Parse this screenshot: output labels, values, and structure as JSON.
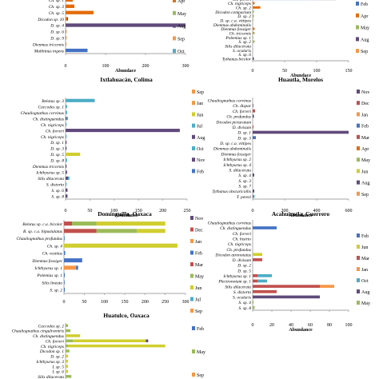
{
  "colors": {
    "Feb": "#4472c4",
    "Mar": "#c0504d",
    "Apr": "#e46c0a",
    "May": "#9bbb59",
    "Jun": "#d0ce2f",
    "Jul": "#4bacc6",
    "Aug": "#604a7b",
    "Sep": "#f79646",
    "Oct": "#4bacc6",
    "Nov": "#604a7b",
    "Dec": "#c0504d",
    "Jan": "#f79646",
    "Mar2": "#4bacc6",
    "Apr2": "#c0504d",
    "May2": "#9bbb59",
    "Aug2": "#604a7b",
    "Sep2": "#f79646",
    "Oct2": "#c0504d",
    "Dec2": "#c0504d"
  },
  "chart_data": [
    {
      "type": "bar",
      "orientation": "horizontal",
      "stacked": true,
      "title": "",
      "xlabel": "Abundace",
      "xlim": [
        0,
        300
      ],
      "xticks": [
        0,
        100,
        200,
        300
      ],
      "categories": [
        "Ch. sp. 1",
        "Ch. sp. 3",
        "Ch. sp. 5",
        "Dicodon sp. 10",
        "D. sp. 4",
        "D. sp. 6",
        "D. sp. 9",
        "Dienmus tricornis",
        "Malthinus ingens"
      ],
      "series": [
        {
          "name": "Feb",
          "values": [
            0,
            0,
            0,
            0,
            0,
            0,
            0,
            0,
            55
          ]
        },
        {
          "name": "Apr",
          "values": [
            18,
            22,
            70,
            4,
            0,
            2,
            2,
            1,
            0
          ]
        },
        {
          "name": "Aug",
          "values": [
            0,
            0,
            0,
            2,
            320,
            0,
            0,
            0,
            0
          ]
        },
        {
          "name": "Sep",
          "values": [
            0,
            0,
            0,
            0,
            0,
            0,
            0,
            0,
            0
          ]
        },
        {
          "name": "Oct",
          "values": [
            0,
            0,
            0,
            0,
            0,
            0,
            0,
            0,
            0
          ]
        }
      ],
      "legend": [
        "Apr",
        "May",
        "Aug",
        "Sep",
        "Oct"
      ]
    },
    {
      "type": "bar",
      "orientation": "horizontal",
      "stacked": true,
      "title": "",
      "xlabel": "Abundace",
      "xlim": [
        0,
        150
      ],
      "xticks": [
        0,
        50,
        100,
        150
      ],
      "categories": [
        "Ch. forreri",
        "Ch. nigriceps",
        "Ch. sp. 2",
        "Dicodon compactum",
        "D. sp. 2",
        "D. sp. c.a. vittipes",
        "Dienmus abdominalis",
        "Dienmus fossiger",
        "Ch. tricornis",
        "Polemius sp. 1",
        "S. sp. 2",
        "Silis dilacerata",
        "S. ocularis",
        "S. sp. 6",
        "Tythanus bicolor"
      ],
      "series": [
        {
          "name": "Feb",
          "values": [
            100,
            0,
            0,
            0,
            0,
            0,
            0,
            0,
            0,
            0,
            0,
            0,
            0,
            0,
            0
          ]
        },
        {
          "name": "Apr",
          "values": [
            0,
            3,
            12,
            0,
            0,
            0,
            0,
            3,
            1,
            0,
            0,
            0,
            0,
            0,
            0
          ]
        },
        {
          "name": "May",
          "values": [
            0,
            0,
            0,
            2,
            2,
            1,
            0,
            0,
            2,
            1,
            3,
            0,
            0,
            0,
            0
          ]
        },
        {
          "name": "Aug",
          "values": [
            30,
            0,
            0,
            0,
            0,
            0,
            0,
            0,
            0,
            0,
            0,
            0,
            0,
            0,
            2
          ]
        },
        {
          "name": "Sep",
          "values": [
            0,
            0,
            0,
            0,
            0,
            0,
            0,
            0,
            0,
            0,
            0,
            0,
            0,
            0,
            0
          ]
        },
        {
          "name": "Oct",
          "values": [
            0,
            0,
            0,
            0,
            0,
            0,
            0,
            0,
            0,
            0,
            0,
            0,
            0,
            0,
            0
          ]
        }
      ],
      "legend": [
        "Feb",
        "Apr",
        "May",
        "Aug",
        "Sep"
      ]
    },
    {
      "type": "bar",
      "orientation": "horizontal",
      "stacked": true,
      "title": "Ixtlahuacán, Colima",
      "xlabel": "Abundance",
      "xlim": [
        0,
        250
      ],
      "xticks": [
        0,
        50,
        100,
        150,
        200,
        250
      ],
      "categories": [
        "Belotus sp. 3",
        "Caccodes sp. 1",
        "Chauliognathus corvinus",
        "Ch. distinguendus",
        "Ch. nigriceps",
        "Ch. forreri",
        "Ch. nigriceps",
        "D. sp. 1",
        "D. sp. 3",
        "D. sp. 5",
        "D. sp. 8",
        "Dienmus tricornis",
        "Ichthyurus sp. 5",
        "Silis dilacerata",
        "S. distorta",
        "S. sp. 6",
        "S. sp. 8"
      ],
      "series": [
        {
          "name": "Jun",
          "values": [
            0,
            0,
            0,
            0,
            0,
            0,
            0,
            0,
            0,
            30,
            0,
            0,
            0,
            0,
            0,
            0,
            0
          ]
        },
        {
          "name": "Jul",
          "values": [
            5,
            3,
            3,
            0,
            0,
            0,
            0,
            0,
            0,
            0,
            3,
            0,
            0,
            0,
            0,
            0,
            0
          ]
        },
        {
          "name": "Aug",
          "values": [
            0,
            0,
            0,
            2,
            0,
            235,
            0,
            2,
            2,
            0,
            0,
            2,
            3,
            5,
            0,
            4,
            4
          ]
        },
        {
          "name": "Oct",
          "values": [
            55,
            0,
            0,
            3,
            2,
            0,
            2,
            0,
            0,
            0,
            0,
            0,
            0,
            3,
            2,
            0,
            0
          ]
        },
        {
          "name": "Feb",
          "values": [
            0,
            0,
            0,
            0,
            0,
            0,
            0,
            0,
            0,
            0,
            0,
            0,
            0,
            0,
            0,
            0,
            0
          ]
        }
      ],
      "legend": [
        "Sep",
        "Jan",
        "Jun",
        "Jul",
        "Aug",
        "Oct",
        "Nov",
        "Feb"
      ]
    },
    {
      "type": "bar",
      "orientation": "horizontal",
      "stacked": true,
      "title": "Huautla, Morelos",
      "xlabel": "Abundance",
      "xlim": [
        0,
        600
      ],
      "xticks": [
        0,
        200,
        400,
        600
      ],
      "categories": [
        "Chauliognathus corvinus",
        "Ch. dispar",
        "Ch. forreri",
        "Ch. profundus",
        "Dicodon picturatum",
        "D. divisum",
        "D. sp. 1",
        "D. sp. 3",
        "D. sp. c.a. vittipes",
        "Dienmus abdominalis",
        "Dienmus fossiger",
        "Ichthyurus sp. 2",
        "Ichthyurus sp. 4",
        "S. dilacerata",
        "S. sp. 4",
        "S. sp. 3",
        "S. sp. 7",
        "Tythanus obscuricollis",
        "T. perezi"
      ],
      "series": [
        {
          "name": "Nov",
          "values": [
            0,
            2,
            0,
            0,
            0,
            0,
            640,
            0,
            0,
            0,
            0,
            0,
            0,
            0,
            0,
            0,
            0,
            0,
            0
          ]
        },
        {
          "name": "Jun",
          "values": [
            0,
            0,
            0,
            0,
            0,
            0,
            0,
            0,
            0,
            0,
            0,
            0,
            0,
            0,
            0,
            0,
            0,
            0,
            0
          ]
        },
        {
          "name": "Mar",
          "values": [
            0,
            0,
            15,
            0,
            0,
            5,
            0,
            0,
            0,
            0,
            0,
            0,
            0,
            0,
            0,
            0,
            0,
            0,
            0
          ]
        },
        {
          "name": "Aug",
          "values": [
            0,
            0,
            0,
            8,
            0,
            0,
            0,
            0,
            0,
            0,
            0,
            0,
            0,
            0,
            10,
            0,
            0,
            10,
            4
          ]
        },
        {
          "name": "Oct",
          "values": [
            0,
            0,
            0,
            0,
            0,
            0,
            0,
            0,
            0,
            0,
            0,
            0,
            0,
            0,
            0,
            0,
            0,
            0,
            8
          ]
        },
        {
          "name": "Feb",
          "values": [
            0,
            0,
            0,
            0,
            0,
            0,
            0,
            20,
            0,
            0,
            0,
            0,
            0,
            0,
            0,
            0,
            0,
            0,
            0
          ]
        }
      ],
      "legend": [
        "Nov",
        "Dec",
        "Jan",
        "Feb",
        "Mar",
        "Apr",
        "May",
        "Jun",
        "Aug",
        "Sep"
      ]
    },
    {
      "type": "bar",
      "orientation": "horizontal",
      "stacked": true,
      "title": "Domínguillo, Oaxaca",
      "xlabel": "",
      "xlim": [
        0,
        300
      ],
      "xticks": [
        0,
        50,
        100,
        150,
        200,
        250,
        300
      ],
      "categories": [
        "Belotus sp. c.a. bicolor",
        "B. sp. c.a. bipustulatus",
        "Chauliognathus profundus",
        "Ch. sp. 4",
        "Ch. vestitus",
        "Dienmus fossiger",
        "Ichthyurus sp. 1",
        "Polemius sp. 1",
        "Silis lineata",
        "S. sp. 2"
      ],
      "series": [
        {
          "name": "Nov",
          "values": [
            0,
            0,
            0,
            0,
            0,
            0,
            0,
            0,
            0,
            0
          ]
        },
        {
          "name": "Dec",
          "values": [
            0,
            0,
            0,
            0,
            0,
            0,
            0,
            0,
            0,
            0
          ]
        },
        {
          "name": "Mar",
          "values": [
            20,
            80,
            0,
            0,
            0,
            0,
            0,
            0,
            0,
            0
          ]
        },
        {
          "name": "May",
          "values": [
            60,
            100,
            0,
            0,
            0,
            0,
            0,
            0,
            0,
            0
          ]
        },
        {
          "name": "Jun",
          "values": [
            170,
            70,
            0,
            280,
            0,
            0,
            0,
            0,
            0,
            0
          ]
        },
        {
          "name": "Jul",
          "values": [
            0,
            0,
            0,
            0,
            0,
            0,
            0,
            0,
            0,
            0
          ]
        },
        {
          "name": "Sep",
          "values": [
            0,
            0,
            0,
            0,
            0,
            0,
            30,
            0,
            0,
            0
          ]
        },
        {
          "name": "Feb",
          "values": [
            0,
            0,
            1,
            0,
            3,
            45,
            5,
            2,
            1,
            2
          ]
        }
      ],
      "legend": [
        "Nov",
        "Dec",
        "Jan",
        "Feb",
        "Mar",
        "May",
        "Jun",
        "Jul",
        "Sep"
      ]
    },
    {
      "type": "bar",
      "orientation": "horizontal",
      "stacked": true,
      "title": "Acahuizotla, Guerrero",
      "xlabel": "Abundance",
      "xlim": [
        0,
        100
      ],
      "xticks": [
        0,
        20,
        40,
        60,
        80,
        100
      ],
      "categories": [
        "Chauliognathus corvinus",
        "Ch. distinguendus",
        "Ch. forreri",
        "Ch. histrio",
        "Ch. nigriceps",
        "Ch. profundus",
        "Dicodon atronotatus",
        "D. divisum",
        "D. sp. 2",
        "D. sp. 5",
        "Ichthyurus sp. 1",
        "Plectronotum sp. 1",
        "Silis dilacerata",
        "S. distorta",
        "S. ocularis",
        "S. sp. 4",
        "S. sp. 8"
      ],
      "series": [
        {
          "name": "Feb",
          "values": [
            0,
            25,
            0,
            0,
            0,
            0,
            0,
            0,
            0,
            0,
            0,
            0,
            0,
            0,
            0,
            0,
            0
          ]
        },
        {
          "name": "Jun",
          "values": [
            0,
            0,
            0,
            0,
            0,
            0,
            10,
            0,
            0,
            0,
            0,
            0,
            0,
            0,
            0,
            0,
            0
          ]
        },
        {
          "name": "Mar",
          "values": [
            0,
            0,
            0,
            0,
            0,
            0,
            0,
            10,
            0,
            0,
            5,
            5,
            70,
            25,
            0,
            0,
            0
          ]
        },
        {
          "name": "Jan",
          "values": [
            0,
            0,
            0,
            0,
            0,
            0,
            0,
            0,
            0,
            0,
            0,
            0,
            15,
            0,
            0,
            0,
            0
          ]
        },
        {
          "name": "Oct",
          "values": [
            0,
            0,
            0,
            0,
            0,
            0,
            0,
            0,
            0,
            0,
            15,
            10,
            0,
            0,
            0,
            0,
            0
          ]
        },
        {
          "name": "Aug",
          "values": [
            0,
            0,
            0,
            0,
            0,
            0,
            0,
            0,
            0,
            0,
            0,
            0,
            0,
            0,
            70,
            0,
            0
          ]
        },
        {
          "name": "May",
          "values": [
            0,
            0,
            0,
            0,
            0,
            0,
            0,
            0,
            0,
            0,
            0,
            0,
            0,
            0,
            0,
            1,
            2
          ]
        }
      ],
      "legend": [
        "Feb",
        "Jun",
        "Mar",
        "Jan",
        "Oct",
        "Aug",
        "May"
      ]
    },
    {
      "type": "bar",
      "orientation": "horizontal",
      "stacked": true,
      "title": "Huatulco, Oaxaca",
      "xlabel": "",
      "xlim": [
        0,
        250
      ],
      "xticks": [],
      "categories": [
        "Caccodes sp. 2",
        "Chauliognathus cinguliventris",
        "Ch. distinguendus",
        "Ch. forreri",
        "Ch. nigriceps",
        "Dicodon sp. 1",
        "D. sp. 2",
        "Ichthyurus sp. 3",
        "I. sp. 5",
        "I. sp. 6",
        "Silis dilacerata"
      ],
      "series": [
        {
          "name": "Feb",
          "values": [
            0,
            0,
            0,
            0,
            0,
            0,
            0,
            0,
            0,
            0,
            0
          ]
        },
        {
          "name": "May",
          "values": [
            5,
            10,
            0,
            15,
            5,
            8,
            0,
            0,
            0,
            0,
            12
          ]
        },
        {
          "name": "Jun",
          "values": [
            0,
            0,
            30,
            150,
            200,
            0,
            5,
            5,
            5,
            5,
            0
          ]
        },
        {
          "name": "Aug",
          "values": [
            0,
            0,
            0,
            5,
            0,
            0,
            0,
            0,
            0,
            0,
            0
          ]
        },
        {
          "name": "Sep",
          "values": [
            0,
            0,
            0,
            0,
            0,
            0,
            0,
            0,
            0,
            0,
            0
          ]
        }
      ],
      "legend": [
        "Feb",
        "May",
        "Sep"
      ]
    }
  ]
}
